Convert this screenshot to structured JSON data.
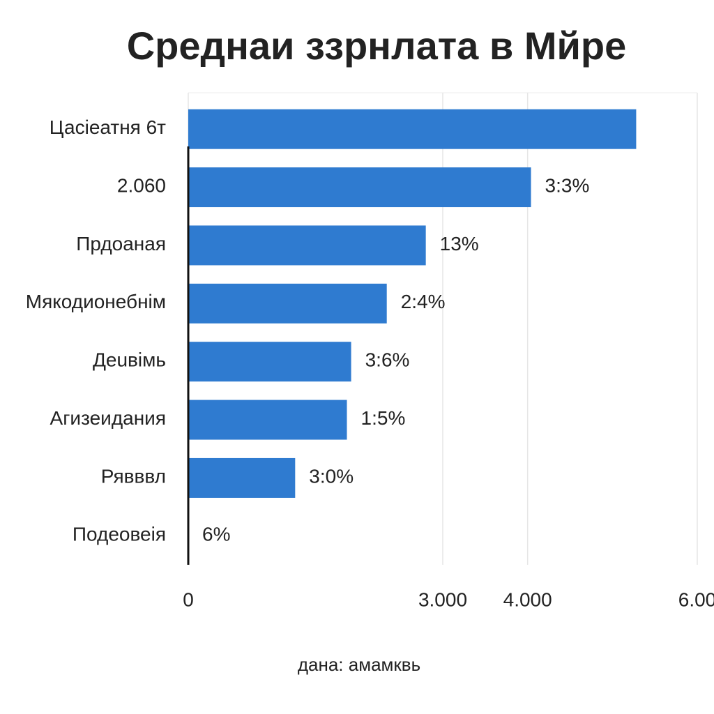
{
  "chart_data": {
    "type": "bar",
    "orientation": "horizontal",
    "title": "Среднаи ззрнлата в Мйре",
    "x_label": "дана: амамквь",
    "categories": [
      "Цасіеатня 6т",
      "2.060",
      "Прдоаная",
      "Мякодионебнім",
      "Деuвімь",
      "Агизеидания",
      "Рявввл",
      "Подеовеія"
    ],
    "values": [
      5280,
      4040,
      2800,
      2340,
      1920,
      1870,
      1260,
      0
    ],
    "value_labels": [
      null,
      "3:3%",
      "13%",
      "2:4%",
      "3:6%",
      "1:5%",
      "3:0%",
      "6%"
    ],
    "color": "#2f7bd0",
    "xlim": [
      0,
      6000
    ],
    "xticks": [
      0,
      {
        "value": 3000,
        "label": "3.000"
      },
      {
        "value": 4000,
        "label": "4.000"
      },
      {
        "value": 6000,
        "label": "6.00"
      }
    ],
    "grid": true
  }
}
